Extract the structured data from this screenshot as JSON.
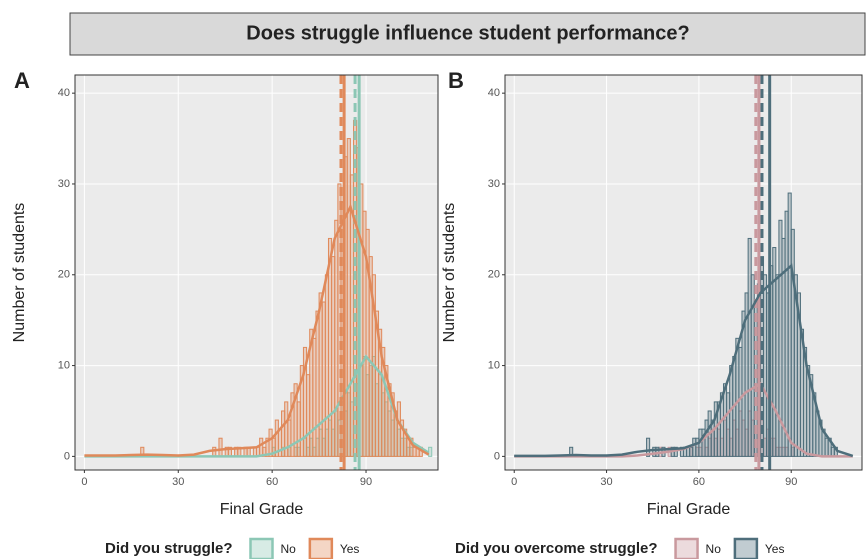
{
  "title": "Does struggle influence student performance?",
  "chart_data": [
    {
      "type": "histogram",
      "label": "A",
      "xlabel": "Final Grade",
      "ylabel": "Number of students",
      "legend_title": "Did you struggle?",
      "xlim": [
        -3,
        113
      ],
      "xticks": [
        0,
        30,
        60,
        90
      ],
      "ylim": [
        -1.5,
        42
      ],
      "yticks": [
        0,
        10,
        20,
        30,
        40
      ],
      "grid": true,
      "bins": [
        16,
        17,
        18,
        19,
        20,
        21,
        22,
        23,
        24,
        25,
        26,
        27,
        28,
        29,
        30,
        31,
        32,
        33,
        34,
        35,
        36,
        37,
        38,
        39,
        40,
        41,
        42,
        43,
        44,
        45,
        46,
        47,
        48,
        49,
        50,
        51,
        52,
        53,
        54,
        55,
        56,
        57,
        58,
        59,
        60,
        61,
        62,
        63,
        64,
        65,
        66,
        67,
        68,
        69,
        70,
        71,
        72,
        73,
        74,
        75,
        76,
        77,
        78,
        79,
        80,
        81,
        82,
        83,
        84,
        85,
        86,
        87,
        88,
        89,
        90,
        91,
        92,
        93,
        94,
        95,
        96,
        97,
        98,
        99,
        100,
        101,
        102,
        103,
        104,
        105,
        106,
        107,
        108,
        109,
        110,
        111
      ],
      "curve_x": [
        0,
        5,
        10,
        15,
        20,
        25,
        30,
        35,
        40,
        45,
        50,
        55,
        60,
        65,
        70,
        75,
        80,
        85,
        90,
        95,
        100,
        105,
        110
      ],
      "series": [
        {
          "name": "No",
          "color": "#8cc7b5",
          "values": [
            0,
            0,
            0,
            0,
            0,
            0,
            0,
            0,
            0,
            0,
            0,
            0,
            0,
            0,
            0,
            0,
            0,
            0,
            0,
            0,
            0,
            0,
            0,
            0,
            0,
            0,
            0,
            0,
            0,
            0,
            0,
            0,
            0,
            0,
            0,
            0,
            0,
            0,
            0,
            0,
            0,
            0,
            0,
            0,
            1,
            0,
            0,
            1,
            0,
            1,
            0,
            1,
            1,
            0,
            2,
            1,
            2,
            1,
            2,
            3,
            2,
            3,
            4,
            3,
            5,
            4,
            6,
            5,
            7,
            6,
            9,
            8,
            10,
            11,
            9,
            10,
            11,
            8,
            9,
            7,
            6,
            5,
            4,
            5,
            3,
            2,
            2,
            1,
            1,
            0,
            0,
            0,
            0,
            0,
            1
          ],
          "curve": [
            0,
            0,
            0,
            0,
            0,
            0,
            0,
            0,
            0,
            0,
            0,
            0,
            0.3,
            1,
            2,
            3.5,
            5,
            8,
            11,
            9,
            4,
            1.5,
            0.4
          ],
          "mean": 86.5,
          "median": 87.8
        },
        {
          "name": "Yes",
          "color": "#e0895a",
          "values": [
            0,
            0,
            1,
            0,
            0,
            0,
            0,
            0,
            0,
            0,
            0,
            0,
            0,
            0,
            0,
            0,
            0,
            0,
            0,
            0,
            0,
            0,
            0,
            0,
            0,
            1,
            0,
            2,
            0,
            1,
            1,
            0,
            1,
            1,
            0,
            1,
            1,
            0,
            1,
            1,
            2,
            1,
            2,
            3,
            2,
            4,
            3,
            5,
            6,
            4,
            7,
            8,
            6,
            10,
            12,
            9,
            14,
            13,
            16,
            18,
            17,
            20,
            24,
            22,
            26,
            30,
            28,
            33,
            35,
            31,
            37,
            34,
            30,
            27,
            25,
            22,
            20,
            16,
            14,
            12,
            10,
            8,
            7,
            5,
            6,
            4,
            3,
            2,
            2,
            1,
            1,
            1,
            0,
            0,
            0
          ],
          "curve": [
            0.1,
            0.1,
            0.1,
            0.15,
            0.2,
            0.15,
            0.1,
            0.2,
            0.6,
            0.8,
            0.9,
            1,
            2,
            4,
            9,
            16,
            24,
            27.5,
            22,
            11,
            4,
            1.2,
            0.2
          ],
          "mean": 82,
          "median": 83
        }
      ]
    },
    {
      "type": "histogram",
      "label": "B",
      "xlabel": "Final Grade",
      "ylabel": "Number of students",
      "legend_title": "Did you overcome struggle?",
      "xlim": [
        -3,
        113
      ],
      "xticks": [
        0,
        30,
        60,
        90
      ],
      "ylim": [
        -1.5,
        42
      ],
      "yticks": [
        0,
        10,
        20,
        30,
        40
      ],
      "grid": true,
      "bins": [
        16,
        17,
        18,
        19,
        20,
        21,
        22,
        23,
        24,
        25,
        26,
        27,
        28,
        29,
        30,
        31,
        32,
        33,
        34,
        35,
        36,
        37,
        38,
        39,
        40,
        41,
        42,
        43,
        44,
        45,
        46,
        47,
        48,
        49,
        50,
        51,
        52,
        53,
        54,
        55,
        56,
        57,
        58,
        59,
        60,
        61,
        62,
        63,
        64,
        65,
        66,
        67,
        68,
        69,
        70,
        71,
        72,
        73,
        74,
        75,
        76,
        77,
        78,
        79,
        80,
        81,
        82,
        83,
        84,
        85,
        86,
        87,
        88,
        89,
        90,
        91,
        92,
        93,
        94,
        95,
        96,
        97,
        98,
        99,
        100,
        101,
        102,
        103,
        104,
        105,
        106,
        107,
        108,
        109,
        110,
        111
      ],
      "curve_x": [
        0,
        5,
        10,
        15,
        20,
        25,
        30,
        35,
        40,
        45,
        50,
        55,
        60,
        65,
        70,
        75,
        80,
        85,
        90,
        95,
        100,
        105,
        110
      ],
      "series": [
        {
          "name": "No",
          "color": "#c9999e",
          "values": [
            0,
            0,
            0,
            0,
            0,
            0,
            0,
            0,
            0,
            0,
            0,
            0,
            0,
            0,
            0,
            0,
            0,
            0,
            0,
            0,
            0,
            0,
            0,
            0,
            0,
            0,
            0,
            0,
            0,
            0,
            0,
            1,
            0,
            0,
            1,
            0,
            0,
            0,
            0,
            0,
            0,
            1,
            0,
            1,
            1,
            2,
            1,
            2,
            3,
            2,
            3,
            2,
            4,
            3,
            2,
            4,
            3,
            5,
            4,
            3,
            5,
            4,
            3,
            3,
            4,
            2,
            3,
            2,
            2,
            1,
            1,
            1,
            1,
            0,
            1,
            0,
            0,
            0,
            0,
            0,
            0,
            0,
            0,
            0,
            0,
            0,
            0,
            0,
            0,
            0,
            0,
            0,
            0,
            0,
            0
          ],
          "curve": [
            0,
            0,
            0,
            0,
            0,
            0,
            0,
            0,
            0.1,
            0.3,
            0.5,
            0.8,
            1.5,
            3,
            5,
            7,
            8,
            5,
            1.5,
            0.3,
            0,
            0,
            0
          ],
          "mean": 78.5,
          "median": 79.5
        },
        {
          "name": "Yes",
          "color": "#4e6e7b",
          "values": [
            0,
            0,
            1,
            0,
            0,
            0,
            0,
            0,
            0,
            0,
            0,
            0,
            0,
            0,
            0,
            0,
            0,
            0,
            0,
            0,
            0,
            0,
            0,
            0,
            0,
            0,
            0,
            2,
            0,
            1,
            1,
            0,
            1,
            0,
            0,
            1,
            1,
            0,
            1,
            1,
            1,
            1,
            2,
            2,
            3,
            3,
            4,
            5,
            4,
            6,
            6,
            7,
            8,
            7,
            10,
            11,
            13,
            12,
            16,
            18,
            24,
            20,
            17,
            19,
            22,
            20,
            18,
            21,
            23,
            20,
            26,
            24,
            27,
            29,
            25,
            20,
            18,
            14,
            12,
            10,
            9,
            7,
            5,
            4,
            3,
            2,
            2,
            1,
            1,
            0,
            0,
            0,
            0,
            0,
            0
          ],
          "curve": [
            0.05,
            0.05,
            0.05,
            0.1,
            0.15,
            0.1,
            0.1,
            0.2,
            0.5,
            0.7,
            0.8,
            0.9,
            1.5,
            4,
            9,
            15,
            18,
            19.5,
            21,
            10,
            3,
            0.6,
            0.05
          ],
          "mean": 80.5,
          "median": 83
        }
      ]
    }
  ]
}
